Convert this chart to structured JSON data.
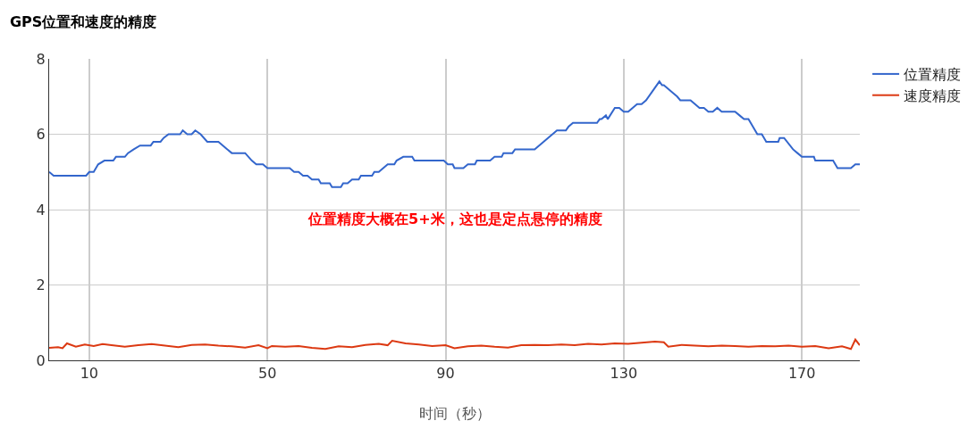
{
  "chart_data": {
    "type": "line",
    "title": "GPS位置和速度的精度",
    "xlabel": "时间（秒）",
    "xlim": [
      1,
      183
    ],
    "xticks": [
      10,
      50,
      90,
      130,
      170
    ],
    "ylim": [
      0,
      8
    ],
    "yticks": [
      0,
      2,
      4,
      6,
      8
    ],
    "grid": true,
    "legend": "top right",
    "marker": "none",
    "line_style": "solid",
    "annotations": [
      "位置精度大概在5+米，这也是定点悬停的精度"
    ],
    "series": [
      {
        "name": "位置精度",
        "color": "#3366cc",
        "x": [
          1,
          2,
          9.3,
          10,
          11,
          12,
          13.4,
          15.4,
          16,
          18,
          18.7,
          20,
          21.4,
          23.8,
          24.4,
          26,
          26.7,
          27.8,
          30.4,
          31,
          32,
          33,
          33.8,
          35,
          36.5,
          39,
          40,
          41,
          42,
          45,
          46.5,
          47.5,
          49,
          50,
          55,
          56,
          57,
          58,
          59,
          60,
          61.5,
          62,
          64,
          64.5,
          66.5,
          67,
          68,
          69,
          70.5,
          71,
          73.5,
          74,
          75,
          77,
          78.5,
          79,
          80.5,
          82.5,
          83,
          89.6,
          90.5,
          91.6,
          92,
          94,
          95,
          96.6,
          97,
          100,
          101,
          102.6,
          103,
          105,
          105.6,
          110,
          111,
          112,
          113,
          114,
          115,
          117,
          117.6,
          118.6,
          124,
          124.6,
          125,
          126,
          126.4,
          128,
          129,
          130,
          131,
          132,
          133,
          134,
          135,
          138,
          138.6,
          139,
          140,
          141,
          142,
          142.7,
          145,
          146,
          147,
          148,
          149,
          150,
          151,
          152,
          155,
          156,
          157,
          158,
          160,
          161,
          162,
          164.7,
          165,
          166,
          168,
          169,
          170,
          172.7,
          173,
          177,
          178,
          181,
          182,
          183
        ],
        "values": [
          5.0,
          4.9,
          4.9,
          5.0,
          5.0,
          5.2,
          5.3,
          5.3,
          5.4,
          5.4,
          5.5,
          5.6,
          5.7,
          5.7,
          5.8,
          5.8,
          5.9,
          6.0,
          6.0,
          6.1,
          6.0,
          6.0,
          6.1,
          6.0,
          5.8,
          5.8,
          5.7,
          5.6,
          5.5,
          5.5,
          5.3,
          5.2,
          5.2,
          5.1,
          5.1,
          5.0,
          5.0,
          4.9,
          4.9,
          4.8,
          4.8,
          4.7,
          4.7,
          4.6,
          4.6,
          4.7,
          4.7,
          4.8,
          4.8,
          4.9,
          4.9,
          5.0,
          5.0,
          5.2,
          5.2,
          5.3,
          5.4,
          5.4,
          5.3,
          5.3,
          5.2,
          5.2,
          5.1,
          5.1,
          5.2,
          5.2,
          5.3,
          5.3,
          5.4,
          5.4,
          5.5,
          5.5,
          5.6,
          5.6,
          5.7,
          5.8,
          5.9,
          6.0,
          6.1,
          6.1,
          6.2,
          6.3,
          6.3,
          6.4,
          6.4,
          6.5,
          6.4,
          6.7,
          6.7,
          6.6,
          6.6,
          6.7,
          6.8,
          6.8,
          6.9,
          7.4,
          7.3,
          7.3,
          7.2,
          7.1,
          7.0,
          6.9,
          6.9,
          6.8,
          6.7,
          6.7,
          6.6,
          6.6,
          6.7,
          6.6,
          6.6,
          6.5,
          6.4,
          6.4,
          6.0,
          6.0,
          5.8,
          5.8,
          5.9,
          5.9,
          5.6,
          5.5,
          5.4,
          5.4,
          5.3,
          5.3,
          5.1,
          5.1,
          5.2,
          5.2
        ]
      },
      {
        "name": "速度精度",
        "color": "#dc3912",
        "x": [
          1,
          3,
          4,
          5,
          7,
          9,
          11,
          13,
          15,
          18,
          21,
          24,
          27,
          30,
          33,
          36,
          39,
          42,
          45,
          48,
          50,
          51,
          54,
          57,
          60,
          63,
          66,
          69,
          72,
          75,
          77,
          78,
          81,
          84,
          87,
          90,
          92,
          95,
          98,
          101,
          104,
          107,
          110,
          113,
          116,
          119,
          122,
          125,
          128,
          131,
          134,
          137,
          139,
          140,
          143,
          146,
          149,
          152,
          155,
          158,
          161,
          164,
          167,
          170,
          173,
          176,
          179,
          181,
          182,
          183
        ],
        "values": [
          0.33,
          0.35,
          0.32,
          0.45,
          0.36,
          0.42,
          0.38,
          0.43,
          0.4,
          0.36,
          0.4,
          0.43,
          0.39,
          0.35,
          0.41,
          0.42,
          0.39,
          0.37,
          0.34,
          0.4,
          0.32,
          0.38,
          0.36,
          0.38,
          0.33,
          0.3,
          0.37,
          0.35,
          0.41,
          0.44,
          0.4,
          0.52,
          0.45,
          0.42,
          0.38,
          0.4,
          0.32,
          0.37,
          0.39,
          0.36,
          0.34,
          0.4,
          0.41,
          0.4,
          0.42,
          0.4,
          0.44,
          0.42,
          0.45,
          0.44,
          0.47,
          0.5,
          0.48,
          0.36,
          0.41,
          0.39,
          0.37,
          0.39,
          0.38,
          0.36,
          0.38,
          0.37,
          0.39,
          0.36,
          0.38,
          0.32,
          0.37,
          0.3,
          0.55,
          0.4
        ]
      }
    ]
  }
}
